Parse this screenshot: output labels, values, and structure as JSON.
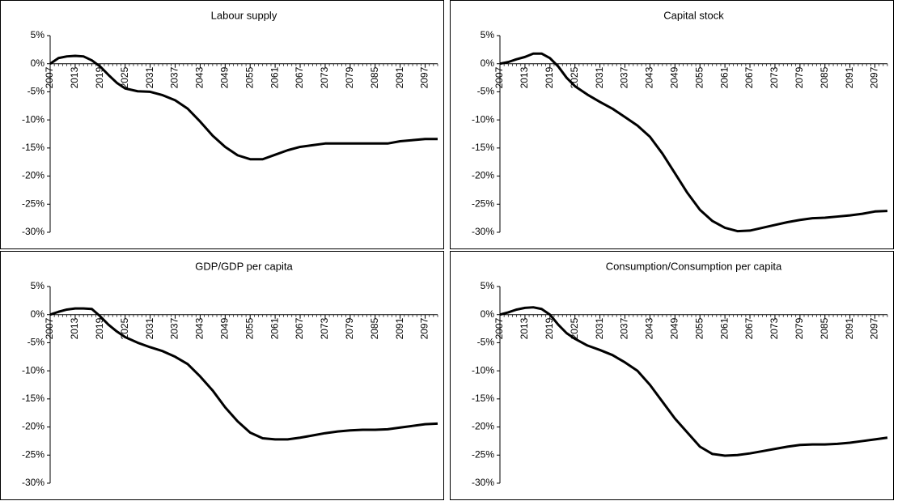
{
  "chart_data": [
    {
      "type": "line",
      "title": "Labour supply",
      "x": [
        2007,
        2009,
        2011,
        2013,
        2015,
        2017,
        2019,
        2021,
        2023,
        2025,
        2028,
        2031,
        2034,
        2037,
        2040,
        2043,
        2046,
        2049,
        2052,
        2055,
        2058,
        2061,
        2064,
        2067,
        2070,
        2073,
        2076,
        2079,
        2082,
        2085,
        2088,
        2091,
        2094,
        2097,
        2100
      ],
      "series": [
        {
          "color": "#000000",
          "values": [
            0,
            1,
            1.3,
            1.4,
            1.3,
            0.6,
            -0.5,
            -2,
            -3.4,
            -4.4,
            -4.9,
            -5,
            -5.6,
            -6.5,
            -8,
            -10.3,
            -12.8,
            -14.8,
            -16.3,
            -17,
            -17,
            -16.2,
            -15.4,
            -14.8,
            -14.5,
            -14.2,
            -14.2,
            -14.2,
            -14.2,
            -14.2,
            -14.2,
            -13.8,
            -13.6,
            -13.4,
            -13.4
          ]
        }
      ],
      "xlim": [
        2007,
        2100
      ],
      "xticks": [
        2007,
        2013,
        2019,
        2025,
        2031,
        2037,
        2043,
        2049,
        2055,
        2061,
        2067,
        2073,
        2079,
        2085,
        2091,
        2097
      ],
      "ylim": [
        -30,
        5
      ],
      "yticks": [
        {
          "value": 5,
          "label": "5%"
        },
        {
          "value": 0,
          "label": "0%"
        },
        {
          "value": -5,
          "label": "-5%"
        },
        {
          "value": -10,
          "label": "-10%"
        },
        {
          "value": -15,
          "label": "-15%"
        },
        {
          "value": -20,
          "label": "-20%"
        },
        {
          "value": -25,
          "label": "-25%"
        },
        {
          "value": -30,
          "label": "-30%"
        }
      ]
    },
    {
      "type": "line",
      "title": "Capital stock",
      "x": [
        2007,
        2009,
        2011,
        2013,
        2015,
        2017,
        2019,
        2021,
        2023,
        2025,
        2028,
        2031,
        2034,
        2037,
        2040,
        2043,
        2046,
        2049,
        2052,
        2055,
        2058,
        2061,
        2064,
        2067,
        2070,
        2073,
        2076,
        2079,
        2082,
        2085,
        2088,
        2091,
        2094,
        2097,
        2100
      ],
      "series": [
        {
          "color": "#000000",
          "values": [
            0,
            0.3,
            0.8,
            1.2,
            1.8,
            1.8,
            1,
            -0.5,
            -2.5,
            -4,
            -5.5,
            -6.8,
            -8,
            -9.5,
            -11,
            -13,
            -16,
            -19.5,
            -23,
            -26,
            -28,
            -29.2,
            -29.8,
            -29.7,
            -29.2,
            -28.7,
            -28.2,
            -27.8,
            -27.5,
            -27.4,
            -27.2,
            -27,
            -26.7,
            -26.3,
            -26.2
          ]
        }
      ],
      "xlim": [
        2007,
        2100
      ],
      "xticks": [
        2007,
        2013,
        2019,
        2025,
        2031,
        2037,
        2043,
        2049,
        2055,
        2061,
        2067,
        2073,
        2079,
        2085,
        2091,
        2097
      ],
      "ylim": [
        -30,
        5
      ],
      "yticks": [
        {
          "value": 5,
          "label": "5%"
        },
        {
          "value": 0,
          "label": "0%"
        },
        {
          "value": -5,
          "label": "-5%"
        },
        {
          "value": -10,
          "label": "-10%"
        },
        {
          "value": -15,
          "label": "-15%"
        },
        {
          "value": -20,
          "label": "-20%"
        },
        {
          "value": -25,
          "label": "-25%"
        },
        {
          "value": -30,
          "label": "-30%"
        }
      ]
    },
    {
      "type": "line",
      "title": "GDP/GDP per capita",
      "x": [
        2007,
        2009,
        2011,
        2013,
        2015,
        2017,
        2019,
        2021,
        2023,
        2025,
        2028,
        2031,
        2034,
        2037,
        2040,
        2043,
        2046,
        2049,
        2052,
        2055,
        2058,
        2061,
        2064,
        2067,
        2070,
        2073,
        2076,
        2079,
        2082,
        2085,
        2088,
        2091,
        2094,
        2097,
        2100
      ],
      "series": [
        {
          "color": "#000000",
          "values": [
            0,
            0.5,
            0.9,
            1.1,
            1.1,
            1,
            -0.3,
            -1.8,
            -3,
            -4,
            -5,
            -5.8,
            -6.5,
            -7.5,
            -8.8,
            -11,
            -13.5,
            -16.5,
            -19,
            -21,
            -22,
            -22.2,
            -22.2,
            -21.9,
            -21.5,
            -21.1,
            -20.8,
            -20.6,
            -20.5,
            -20.5,
            -20.4,
            -20.1,
            -19.8,
            -19.5,
            -19.4
          ]
        }
      ],
      "xlim": [
        2007,
        2100
      ],
      "xticks": [
        2007,
        2013,
        2019,
        2025,
        2031,
        2037,
        2043,
        2049,
        2055,
        2061,
        2067,
        2073,
        2079,
        2085,
        2091,
        2097
      ],
      "ylim": [
        -30,
        5
      ],
      "yticks": [
        {
          "value": 5,
          "label": "5%"
        },
        {
          "value": 0,
          "label": "0%"
        },
        {
          "value": -5,
          "label": "-5%"
        },
        {
          "value": -10,
          "label": "-10%"
        },
        {
          "value": -15,
          "label": "-15%"
        },
        {
          "value": -20,
          "label": "-20%"
        },
        {
          "value": -25,
          "label": "-25%"
        },
        {
          "value": -30,
          "label": "-30%"
        }
      ]
    },
    {
      "type": "line",
      "title": "Consumption/Consumption per capita",
      "x": [
        2007,
        2009,
        2011,
        2013,
        2015,
        2017,
        2019,
        2021,
        2023,
        2025,
        2028,
        2031,
        2034,
        2037,
        2040,
        2043,
        2046,
        2049,
        2052,
        2055,
        2058,
        2061,
        2064,
        2067,
        2070,
        2073,
        2076,
        2079,
        2082,
        2085,
        2088,
        2091,
        2094,
        2097,
        2100
      ],
      "series": [
        {
          "color": "#000000",
          "values": [
            0,
            0.4,
            0.9,
            1.2,
            1.3,
            1,
            0,
            -1.8,
            -3.3,
            -4.3,
            -5.5,
            -6.3,
            -7.2,
            -8.5,
            -10,
            -12.5,
            -15.5,
            -18.5,
            -21,
            -23.5,
            -24.8,
            -25.1,
            -25,
            -24.7,
            -24.3,
            -23.9,
            -23.5,
            -23.2,
            -23.1,
            -23.1,
            -23,
            -22.8,
            -22.5,
            -22.2,
            -21.9
          ]
        }
      ],
      "xlim": [
        2007,
        2100
      ],
      "xticks": [
        2007,
        2013,
        2019,
        2025,
        2031,
        2037,
        2043,
        2049,
        2055,
        2061,
        2067,
        2073,
        2079,
        2085,
        2091,
        2097
      ],
      "ylim": [
        -30,
        5
      ],
      "yticks": [
        {
          "value": 5,
          "label": "5%"
        },
        {
          "value": 0,
          "label": "0%"
        },
        {
          "value": -5,
          "label": "-5%"
        },
        {
          "value": -10,
          "label": "-10%"
        },
        {
          "value": -15,
          "label": "-15%"
        },
        {
          "value": -20,
          "label": "-20%"
        },
        {
          "value": -25,
          "label": "-25%"
        },
        {
          "value": -30,
          "label": "-30%"
        }
      ]
    }
  ]
}
